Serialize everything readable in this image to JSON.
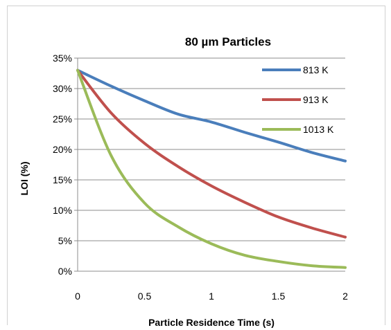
{
  "chart_data": {
    "type": "line",
    "title": "80 µm Particles",
    "xlabel": "Particle Residence Time (s)",
    "ylabel": "LOI (%)",
    "xlim": [
      0,
      2
    ],
    "ylim": [
      0,
      0.35
    ],
    "x_ticks": [
      "0",
      "0.5",
      "1",
      "1.5",
      "2"
    ],
    "x_tick_values": [
      0,
      0.5,
      1,
      1.5,
      2
    ],
    "y_ticks": [
      "0%",
      "5%",
      "10%",
      "15%",
      "20%",
      "25%",
      "30%",
      "35%"
    ],
    "y_tick_values": [
      0,
      0.05,
      0.1,
      0.15,
      0.2,
      0.25,
      0.3,
      0.35
    ],
    "grid": true,
    "legend_position": "top-right",
    "series": [
      {
        "name": "813 K",
        "color": "#4a7ebb",
        "x": [
          0,
          0.25,
          0.5,
          0.75,
          1.0,
          1.25,
          1.5,
          1.75,
          2.0
        ],
        "y": [
          0.33,
          0.304,
          0.28,
          0.258,
          0.245,
          0.228,
          0.212,
          0.195,
          0.181
        ]
      },
      {
        "name": "913 K",
        "color": "#c0504d",
        "x": [
          0,
          0.25,
          0.5,
          0.75,
          1.0,
          1.25,
          1.5,
          1.75,
          2.0
        ],
        "y": [
          0.33,
          0.26,
          0.21,
          0.172,
          0.14,
          0.113,
          0.089,
          0.071,
          0.056
        ]
      },
      {
        "name": "1013 K",
        "color": "#9bbb59",
        "x": [
          0,
          0.25,
          0.5,
          0.75,
          1.0,
          1.25,
          1.5,
          1.75,
          2.0
        ],
        "y": [
          0.33,
          0.19,
          0.112,
          0.073,
          0.045,
          0.026,
          0.016,
          0.009,
          0.006
        ]
      }
    ]
  }
}
